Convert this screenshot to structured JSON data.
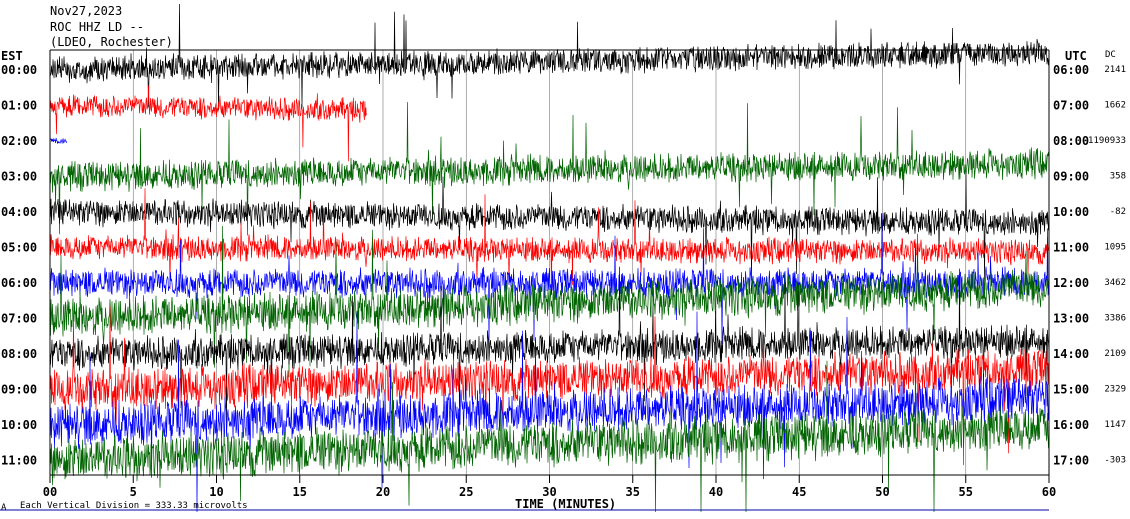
{
  "header": {
    "date": "Nov27,2023",
    "station": "ROC HHZ LD --",
    "location": "(LDEO, Rochester)"
  },
  "left_axis_title": "EST",
  "right_axis_title": "UTC",
  "dc_title": "DC",
  "footer": {
    "scale_note": "Each Vertical Division = 333.33 microvolts",
    "corner_mark": "A"
  },
  "chart_data": {
    "type": "line",
    "title": "",
    "xlabel": "TIME (MINUTES)",
    "ylabel": "",
    "xlim": [
      0,
      60
    ],
    "x_ticks": [
      "00",
      "5",
      "10",
      "15",
      "20",
      "25",
      "30",
      "35",
      "40",
      "45",
      "50",
      "55",
      "60"
    ],
    "traces": [
      {
        "est": "00:00",
        "utc": "06:00",
        "dc": "2141",
        "color": "#000000",
        "drift": -0.8,
        "noise": 1.2,
        "end": 60
      },
      {
        "est": "01:00",
        "utc": "07:00",
        "dc": "1662",
        "color": "#ff0000",
        "drift": 0.2,
        "noise": 1.1,
        "end": 19
      },
      {
        "est": "02:00",
        "utc": "08:00",
        "dc": "-1190933",
        "color": "#0000ff",
        "drift": 0.0,
        "noise": 0.3,
        "end": 1
      },
      {
        "est": "03:00",
        "utc": "09:00",
        "dc": "358",
        "color": "#006400",
        "drift": -0.6,
        "noise": 1.4,
        "end": 60
      },
      {
        "est": "04:00",
        "utc": "10:00",
        "dc": "-82",
        "color": "#000000",
        "drift": 0.5,
        "noise": 1.3,
        "end": 60
      },
      {
        "est": "05:00",
        "utc": "11:00",
        "dc": "1095",
        "color": "#ff0000",
        "drift": 0.2,
        "noise": 1.2,
        "end": 60
      },
      {
        "est": "06:00",
        "utc": "12:00",
        "dc": "3462",
        "color": "#0000ff",
        "drift": 0.0,
        "noise": 1.4,
        "end": 60
      },
      {
        "est": "07:00",
        "utc": "13:00",
        "dc": "3386",
        "color": "#006400",
        "drift": -1.4,
        "noise": 1.9,
        "end": 60
      },
      {
        "est": "08:00",
        "utc": "14:00",
        "dc": "2109",
        "color": "#000000",
        "drift": -0.6,
        "noise": 1.6,
        "end": 60
      },
      {
        "est": "09:00",
        "utc": "15:00",
        "dc": "2329",
        "color": "#ff0000",
        "drift": -0.9,
        "noise": 2.0,
        "end": 60
      },
      {
        "est": "10:00",
        "utc": "16:00",
        "dc": "1147",
        "color": "#0000ff",
        "drift": -1.2,
        "noise": 2.1,
        "end": 60
      },
      {
        "est": "11:00",
        "utc": "17:00",
        "dc": "-303",
        "color": "#006400",
        "drift": -1.5,
        "noise": 2.2,
        "end": 60
      }
    ]
  }
}
